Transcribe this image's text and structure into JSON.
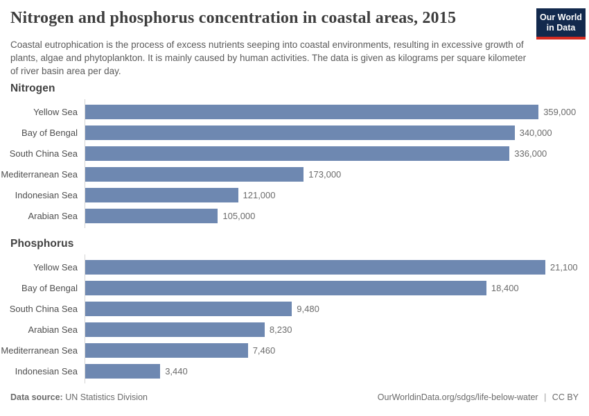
{
  "header": {
    "title": "Nitrogen and phosphorus concentration in coastal areas, 2015",
    "subtitle": "Coastal eutrophication is the process of excess nutrients seeping into coastal environments, resulting in excessive growth of plants, algae and phytoplankton. It is mainly caused by human activities. The data is given as kilograms per square kilometer of river basin area per day.",
    "logo": {
      "line1": "Our World",
      "line2": "in Data"
    }
  },
  "colors": {
    "bar": "#6e88b1",
    "logo_bg": "#12294d",
    "logo_accent": "#d42b21",
    "axis": "#d4d4d4"
  },
  "chart_data": [
    {
      "type": "bar",
      "orientation": "horizontal",
      "title": "Nitrogen",
      "categories": [
        "Yellow Sea",
        "Bay of Bengal",
        "South China Sea",
        "Mediterranean Sea",
        "Indonesian Sea",
        "Arabian Sea"
      ],
      "values": [
        359000,
        340000,
        336000,
        173000,
        121000,
        105000
      ],
      "value_labels": [
        "359,000",
        "340,000",
        "336,000",
        "173,000",
        "121,000",
        "105,000"
      ],
      "xlim": [
        0,
        366000
      ],
      "grid": false,
      "legend": "none"
    },
    {
      "type": "bar",
      "orientation": "horizontal",
      "title": "Phosphorus",
      "categories": [
        "Yellow Sea",
        "Bay of Bengal",
        "South China Sea",
        "Arabian Sea",
        "Mediterranean Sea",
        "Indonesian Sea"
      ],
      "values": [
        21100,
        18400,
        9480,
        8230,
        7460,
        3440
      ],
      "value_labels": [
        "21,100",
        "18,400",
        "9,480",
        "8,230",
        "7,460",
        "3,440"
      ],
      "xlim": [
        0,
        21200
      ],
      "grid": false,
      "legend": "none"
    }
  ],
  "footer": {
    "datasource_label": "Data source:",
    "datasource_value": "UN Statistics Division",
    "url": "OurWorldinData.org/sdgs/life-below-water",
    "separator": "|",
    "license": "CC BY"
  }
}
